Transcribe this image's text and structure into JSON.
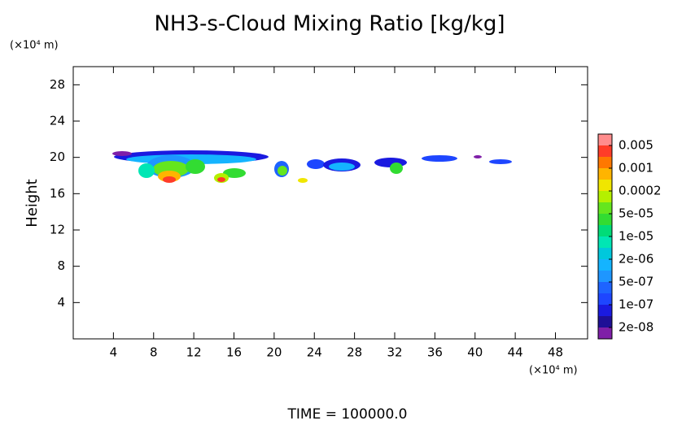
{
  "chart_data": {
    "type": "contour",
    "title": "NH3-s-Cloud Mixing Ratio [kg/kg]",
    "y_label": "Height",
    "y_unit_label": "(×10⁴ m)",
    "x_unit_label": "(×10⁴ m)",
    "footer": "TIME = 100000.0",
    "xlim": [
      0,
      51.2
    ],
    "xticks": [
      4,
      8,
      12,
      16,
      20,
      24,
      28,
      32,
      36,
      40,
      44,
      48
    ],
    "ylim": [
      0,
      30
    ],
    "yticks": [
      4,
      8,
      12,
      16,
      20,
      24,
      28
    ],
    "colorbar": {
      "colors": [
        "#7f1fa8",
        "#1e0f96",
        "#1a1ae0",
        "#1e46ff",
        "#1e64ff",
        "#1e96ff",
        "#14b4ff",
        "#00c8dc",
        "#00e6b4",
        "#00dc78",
        "#32dc32",
        "#64e61e",
        "#b4f000",
        "#f0e600",
        "#ffb400",
        "#ff7800",
        "#ff3c28",
        "#ff8c8c"
      ],
      "levels": [
        {
          "value": 2e-08,
          "label": "2e-08"
        },
        {
          "value": 1e-07,
          "label": "1e-07"
        },
        {
          "value": 5e-07,
          "label": "5e-07"
        },
        {
          "value": 2e-06,
          "label": "2e-06"
        },
        {
          "value": 1e-05,
          "label": "1e-05"
        },
        {
          "value": 5e-05,
          "label": "5e-05"
        },
        0.0002,
        0.001,
        0.005
      ]
    }
  }
}
